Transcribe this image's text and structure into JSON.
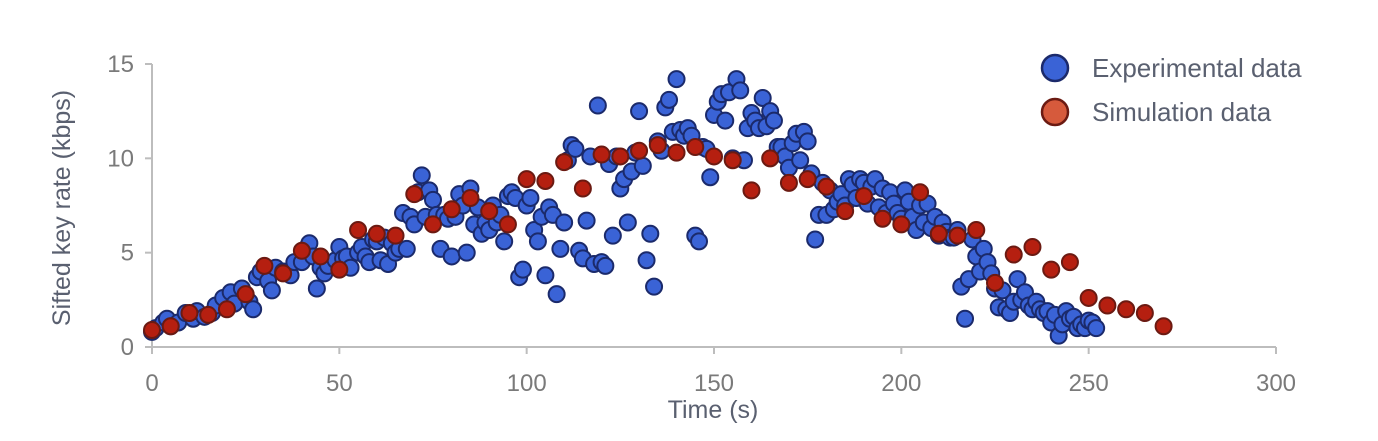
{
  "colors": {
    "experimental_fill": "#3a63d6",
    "experimental_stroke": "#1b2a6b",
    "simulation_fill": "#b51f10",
    "simulation_stroke": "#6b1a12",
    "simulation_legend_fill": "#d65a3c",
    "axis": "#bdbdbd"
  },
  "chart_data": {
    "type": "scatter",
    "xlabel": "Time (s)",
    "ylabel": "Sifted key rate (kbps)",
    "xlim": [
      0,
      300
    ],
    "ylim": [
      0,
      15
    ],
    "xticks": [
      "0",
      "50",
      "100",
      "150",
      "200",
      "250",
      "300"
    ],
    "yticks": [
      "0",
      "5",
      "10",
      "15"
    ],
    "legend_position": "top-right",
    "grid": false,
    "series": [
      {
        "name": "Experimental data",
        "points": [
          [
            0,
            0.8
          ],
          [
            1,
            1.0
          ],
          [
            3,
            1.3
          ],
          [
            4,
            1.5
          ],
          [
            5,
            1.1
          ],
          [
            7,
            1.3
          ],
          [
            9,
            1.8
          ],
          [
            11,
            1.5
          ],
          [
            12,
            1.9
          ],
          [
            14,
            1.6
          ],
          [
            16,
            1.8
          ],
          [
            17,
            2.2
          ],
          [
            19,
            2.6
          ],
          [
            21,
            2.9
          ],
          [
            22,
            2.3
          ],
          [
            24,
            3.1
          ],
          [
            26,
            2.4
          ],
          [
            27,
            2.0
          ],
          [
            28,
            3.7
          ],
          [
            29,
            4.0
          ],
          [
            31,
            3.5
          ],
          [
            32,
            3.0
          ],
          [
            33,
            4.2
          ],
          [
            35,
            4.0
          ],
          [
            37,
            3.8
          ],
          [
            38,
            4.5
          ],
          [
            40,
            4.5
          ],
          [
            41,
            5.2
          ],
          [
            42,
            5.5
          ],
          [
            43,
            4.8
          ],
          [
            44,
            3.1
          ],
          [
            45,
            4.2
          ],
          [
            46,
            3.9
          ],
          [
            47,
            4.3
          ],
          [
            49,
            4.6
          ],
          [
            50,
            5.3
          ],
          [
            51,
            4.7
          ],
          [
            52,
            4.8
          ],
          [
            53,
            4.2
          ],
          [
            55,
            5.0
          ],
          [
            56,
            5.3
          ],
          [
            57,
            4.8
          ],
          [
            58,
            4.5
          ],
          [
            59,
            5.7
          ],
          [
            60,
            5.6
          ],
          [
            61,
            4.6
          ],
          [
            62,
            5.8
          ],
          [
            63,
            4.4
          ],
          [
            64,
            5.5
          ],
          [
            65,
            5.0
          ],
          [
            66,
            5.2
          ],
          [
            67,
            7.1
          ],
          [
            68,
            5.2
          ],
          [
            69,
            6.9
          ],
          [
            70,
            6.5
          ],
          [
            71,
            8.2
          ],
          [
            72,
            9.1
          ],
          [
            73,
            6.9
          ],
          [
            74,
            8.3
          ],
          [
            75,
            7.8
          ],
          [
            76,
            7.0
          ],
          [
            77,
            5.2
          ],
          [
            78,
            7.0
          ],
          [
            79,
            6.8
          ],
          [
            80,
            4.8
          ],
          [
            81,
            6.9
          ],
          [
            82,
            8.1
          ],
          [
            83,
            7.5
          ],
          [
            84,
            5.0
          ],
          [
            85,
            8.4
          ],
          [
            86,
            6.5
          ],
          [
            87,
            7.4
          ],
          [
            88,
            6.0
          ],
          [
            89,
            6.6
          ],
          [
            90,
            6.2
          ],
          [
            91,
            7.5
          ],
          [
            92,
            6.6
          ],
          [
            93,
            7.0
          ],
          [
            94,
            5.6
          ],
          [
            95,
            8.0
          ],
          [
            96,
            8.2
          ],
          [
            97,
            7.9
          ],
          [
            98,
            3.7
          ],
          [
            99,
            4.1
          ],
          [
            100,
            7.5
          ],
          [
            101,
            7.9
          ],
          [
            102,
            6.2
          ],
          [
            103,
            5.6
          ],
          [
            104,
            6.9
          ],
          [
            105,
            3.8
          ],
          [
            106,
            7.4
          ],
          [
            107,
            7.0
          ],
          [
            108,
            2.8
          ],
          [
            109,
            5.2
          ],
          [
            110,
            6.6
          ],
          [
            111,
            9.9
          ],
          [
            112,
            10.7
          ],
          [
            113,
            10.5
          ],
          [
            114,
            5.1
          ],
          [
            115,
            4.7
          ],
          [
            116,
            6.7
          ],
          [
            117,
            10.1
          ],
          [
            118,
            4.4
          ],
          [
            119,
            12.8
          ],
          [
            120,
            4.5
          ],
          [
            121,
            4.3
          ],
          [
            122,
            9.7
          ],
          [
            123,
            5.9
          ],
          [
            124,
            10.1
          ],
          [
            125,
            8.4
          ],
          [
            126,
            8.9
          ],
          [
            127,
            6.6
          ],
          [
            128,
            9.3
          ],
          [
            129,
            10.3
          ],
          [
            130,
            12.5
          ],
          [
            131,
            9.6
          ],
          [
            132,
            4.6
          ],
          [
            133,
            6.0
          ],
          [
            134,
            3.2
          ],
          [
            135,
            10.9
          ],
          [
            136,
            10.4
          ],
          [
            137,
            12.7
          ],
          [
            138,
            13.1
          ],
          [
            139,
            11.4
          ],
          [
            140,
            14.2
          ],
          [
            141,
            11.5
          ],
          [
            142,
            11.2
          ],
          [
            143,
            11.6
          ],
          [
            144,
            11.2
          ],
          [
            145,
            5.9
          ],
          [
            146,
            5.6
          ],
          [
            147,
            10.6
          ],
          [
            148,
            10.5
          ],
          [
            149,
            9.0
          ],
          [
            150,
            12.3
          ],
          [
            151,
            13.0
          ],
          [
            152,
            13.4
          ],
          [
            153,
            12.0
          ],
          [
            154,
            13.5
          ],
          [
            155,
            10.0
          ],
          [
            156,
            14.2
          ],
          [
            157,
            13.6
          ],
          [
            158,
            9.9
          ],
          [
            159,
            11.6
          ],
          [
            160,
            12.4
          ],
          [
            161,
            12.0
          ],
          [
            162,
            11.6
          ],
          [
            163,
            13.2
          ],
          [
            164,
            11.7
          ],
          [
            165,
            12.5
          ],
          [
            166,
            12.0
          ],
          [
            167,
            10.6
          ],
          [
            168,
            10.6
          ],
          [
            169,
            10.1
          ],
          [
            170,
            9.5
          ],
          [
            171,
            10.8
          ],
          [
            172,
            11.3
          ],
          [
            173,
            9.9
          ],
          [
            174,
            11.4
          ],
          [
            175,
            10.9
          ],
          [
            176,
            9.2
          ],
          [
            177,
            5.7
          ],
          [
            178,
            7.0
          ],
          [
            179,
            8.7
          ],
          [
            180,
            7.0
          ],
          [
            181,
            8.3
          ],
          [
            182,
            7.3
          ],
          [
            183,
            7.7
          ],
          [
            184,
            8.1
          ],
          [
            185,
            7.5
          ],
          [
            186,
            8.9
          ],
          [
            187,
            8.6
          ],
          [
            188,
            7.9
          ],
          [
            189,
            8.9
          ],
          [
            190,
            8.7
          ],
          [
            191,
            7.6
          ],
          [
            192,
            8.5
          ],
          [
            193,
            8.9
          ],
          [
            194,
            7.4
          ],
          [
            195,
            8.4
          ],
          [
            196,
            7.1
          ],
          [
            197,
            8.2
          ],
          [
            198,
            7.6
          ],
          [
            199,
            7.1
          ],
          [
            200,
            6.8
          ],
          [
            201,
            8.3
          ],
          [
            202,
            7.7
          ],
          [
            203,
            6.9
          ],
          [
            204,
            6.2
          ],
          [
            205,
            7.5
          ],
          [
            206,
            6.6
          ],
          [
            207,
            7.6
          ],
          [
            208,
            6.3
          ],
          [
            209,
            6.9
          ],
          [
            210,
            5.9
          ],
          [
            211,
            6.6
          ],
          [
            212,
            6.1
          ],
          [
            213,
            5.8
          ],
          [
            214,
            5.8
          ],
          [
            215,
            6.2
          ],
          [
            216,
            3.2
          ],
          [
            217,
            1.5
          ],
          [
            218,
            3.6
          ],
          [
            219,
            5.7
          ],
          [
            220,
            4.8
          ],
          [
            221,
            4.0
          ],
          [
            222,
            5.2
          ],
          [
            223,
            4.5
          ],
          [
            224,
            3.9
          ],
          [
            225,
            3.1
          ],
          [
            226,
            2.1
          ],
          [
            227,
            3.0
          ],
          [
            228,
            2.0
          ],
          [
            229,
            1.8
          ],
          [
            230,
            2.4
          ],
          [
            231,
            3.6
          ],
          [
            232,
            2.5
          ],
          [
            233,
            2.9
          ],
          [
            234,
            2.2
          ],
          [
            235,
            2.0
          ],
          [
            236,
            2.4
          ],
          [
            237,
            2.0
          ],
          [
            238,
            1.8
          ],
          [
            239,
            1.9
          ],
          [
            240,
            1.3
          ],
          [
            241,
            1.7
          ],
          [
            242,
            0.6
          ],
          [
            243,
            1.2
          ],
          [
            244,
            1.9
          ],
          [
            245,
            1.5
          ],
          [
            246,
            1.6
          ],
          [
            247,
            1.0
          ],
          [
            248,
            1.2
          ],
          [
            249,
            1.0
          ],
          [
            250,
            1.4
          ],
          [
            251,
            1.3
          ],
          [
            252,
            1.0
          ]
        ]
      },
      {
        "name": "Simulation data",
        "points": [
          [
            0,
            0.9
          ],
          [
            5,
            1.1
          ],
          [
            10,
            1.8
          ],
          [
            15,
            1.7
          ],
          [
            20,
            2.0
          ],
          [
            25,
            2.8
          ],
          [
            30,
            4.3
          ],
          [
            35,
            3.9
          ],
          [
            40,
            5.1
          ],
          [
            45,
            4.8
          ],
          [
            50,
            4.1
          ],
          [
            55,
            6.2
          ],
          [
            60,
            6.0
          ],
          [
            65,
            5.9
          ],
          [
            70,
            8.1
          ],
          [
            75,
            6.5
          ],
          [
            80,
            7.3
          ],
          [
            85,
            7.9
          ],
          [
            90,
            7.2
          ],
          [
            95,
            6.5
          ],
          [
            100,
            8.9
          ],
          [
            105,
            8.8
          ],
          [
            110,
            9.8
          ],
          [
            115,
            8.4
          ],
          [
            120,
            10.2
          ],
          [
            125,
            10.1
          ],
          [
            130,
            10.4
          ],
          [
            135,
            10.7
          ],
          [
            140,
            10.3
          ],
          [
            145,
            10.6
          ],
          [
            150,
            10.1
          ],
          [
            155,
            9.9
          ],
          [
            160,
            8.3
          ],
          [
            165,
            10.0
          ],
          [
            170,
            8.7
          ],
          [
            175,
            8.9
          ],
          [
            180,
            8.5
          ],
          [
            185,
            7.2
          ],
          [
            190,
            8.0
          ],
          [
            195,
            6.8
          ],
          [
            200,
            6.5
          ],
          [
            205,
            8.2
          ],
          [
            210,
            6.0
          ],
          [
            215,
            5.9
          ],
          [
            220,
            6.2
          ],
          [
            225,
            3.4
          ],
          [
            230,
            4.9
          ],
          [
            235,
            5.3
          ],
          [
            240,
            4.1
          ],
          [
            245,
            4.5
          ],
          [
            250,
            2.6
          ],
          [
            255,
            2.2
          ],
          [
            260,
            2.0
          ],
          [
            265,
            1.8
          ],
          [
            270,
            1.1
          ]
        ]
      }
    ]
  }
}
